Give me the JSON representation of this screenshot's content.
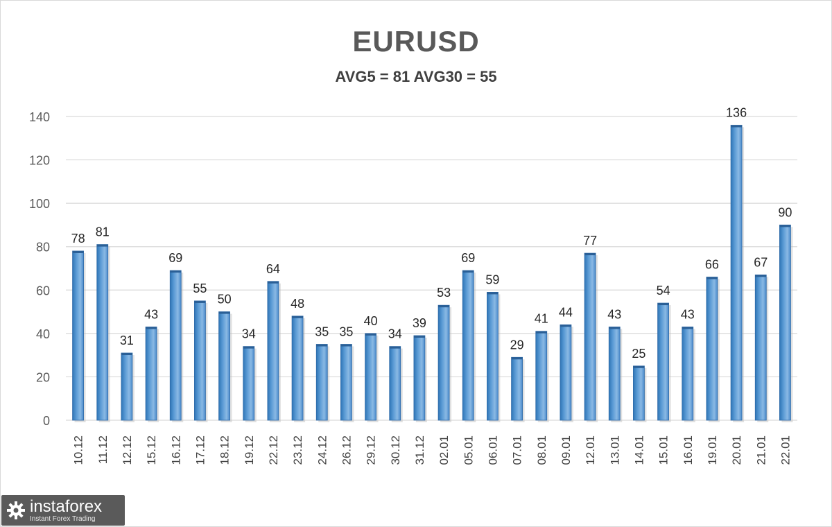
{
  "chart_data": {
    "type": "bar",
    "title": "EURUSD",
    "subtitle": "AVG5 = 81 AVG30 = 55",
    "xlabel": "",
    "ylabel": "",
    "ylim": [
      0,
      140
    ],
    "yticks": [
      0,
      20,
      40,
      60,
      80,
      100,
      120,
      140
    ],
    "grid": true,
    "legend": "none",
    "categories": [
      "10.12",
      "11.12",
      "12.12",
      "15.12",
      "16.12",
      "17.12",
      "18.12",
      "19.12",
      "22.12",
      "23.12",
      "24.12",
      "26.12",
      "29.12",
      "30.12",
      "31.12",
      "02.01",
      "05.01",
      "06.01",
      "07.01",
      "08.01",
      "09.01",
      "12.01",
      "13.01",
      "14.01",
      "15.01",
      "16.01",
      "19.01",
      "20.01",
      "21.01",
      "22.01"
    ],
    "values": [
      78,
      81,
      31,
      43,
      69,
      55,
      50,
      34,
      64,
      48,
      35,
      35,
      40,
      34,
      39,
      53,
      69,
      59,
      29,
      41,
      44,
      77,
      43,
      25,
      54,
      43,
      66,
      136,
      67,
      90
    ],
    "colors": {
      "bar": "#5b9bd5",
      "bar_dark": "#2e75b6",
      "bar_light": "#9dc3e6",
      "grid": "#d9d9d9",
      "text": "#404040"
    }
  },
  "logo": {
    "brand": "instaforex",
    "tagline": "Instant Forex Trading"
  }
}
